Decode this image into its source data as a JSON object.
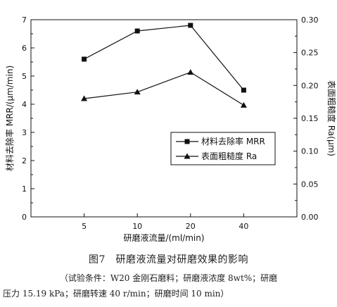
{
  "chart_data": {
    "type": "line",
    "categories": [
      "5",
      "10",
      "20",
      "40"
    ],
    "xlabel": "研磨液流量/(ml/min)",
    "ylabel_left": "材料去除率 MRR/(μm/min)",
    "ylabel_right": "表面粗糙度 Ra(μm)",
    "ylim_left": [
      0,
      7
    ],
    "ylim_right": [
      0,
      0.3
    ],
    "yticks_left": [
      "0",
      "1",
      "2",
      "3",
      "4",
      "5",
      "6",
      "7"
    ],
    "yticks_right": [
      "0.00",
      "0.05",
      "0.10",
      "0.15",
      "0.20",
      "0.25",
      "0.30"
    ],
    "series": [
      {
        "name": "材料去除率 MRR",
        "axis": "left",
        "marker": "square",
        "values": [
          5.6,
          6.6,
          6.8,
          4.5
        ]
      },
      {
        "name": "表面粗糙度 Ra",
        "axis": "right",
        "marker": "triangle",
        "values": [
          0.18,
          0.19,
          0.22,
          0.17
        ]
      }
    ],
    "legend_position": "right-middle",
    "grid": false
  },
  "caption": {
    "title": "图7　研磨液流量对研磨效果的影响",
    "note_line1": "（试验条件：W20 金刚石磨料；研磨液浓度 8wt%；研磨",
    "note_line2": "压力 15.19 kPa；研磨转速 40 r/min；研磨时间 10 min）"
  }
}
